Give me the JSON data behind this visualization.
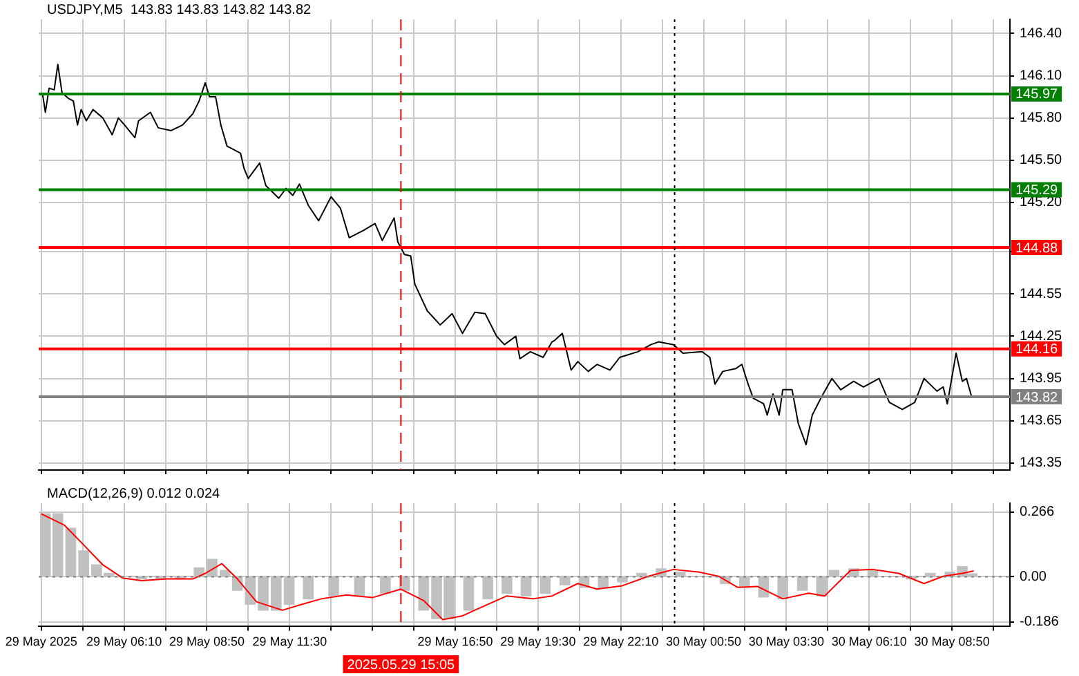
{
  "chart_data": [
    {
      "type": "line",
      "title": "USDJPY,M5  143.83 143.83 143.82 143.82",
      "grid": true,
      "tick_labels": "y",
      "legend": false,
      "xlim": [
        "2025-05-29T03:25",
        "2025-05-30T10:42"
      ],
      "ylim": [
        143.3,
        146.5
      ],
      "xticks": [
        {
          "value": "2025-05-29T03:30",
          "label": null
        },
        {
          "value": "2025-05-29T04:50",
          "label": null
        },
        {
          "value": "2025-05-29T06:10",
          "label": null
        },
        {
          "value": "2025-05-29T07:30",
          "label": null
        },
        {
          "value": "2025-05-29T08:50",
          "label": null
        },
        {
          "value": "2025-05-29T10:10",
          "label": null
        },
        {
          "value": "2025-05-29T11:30",
          "label": null
        },
        {
          "value": "2025-05-29T12:50",
          "label": null
        },
        {
          "value": "2025-05-29T14:10",
          "label": null
        },
        {
          "value": "2025-05-29T15:30",
          "label": null
        },
        {
          "value": "2025-05-29T16:50",
          "label": null
        },
        {
          "value": "2025-05-29T18:10",
          "label": null
        },
        {
          "value": "2025-05-29T19:30",
          "label": null
        },
        {
          "value": "2025-05-29T20:50",
          "label": null
        },
        {
          "value": "2025-05-29T22:10",
          "label": null
        },
        {
          "value": "2025-05-29T23:30",
          "label": null
        },
        {
          "value": "2025-05-30T00:50",
          "label": null
        },
        {
          "value": "2025-05-30T02:10",
          "label": null
        },
        {
          "value": "2025-05-30T03:30",
          "label": null
        },
        {
          "value": "2025-05-30T04:50",
          "label": null
        },
        {
          "value": "2025-05-30T06:10",
          "label": null
        },
        {
          "value": "2025-05-30T07:30",
          "label": null
        },
        {
          "value": "2025-05-30T08:50",
          "label": null
        },
        {
          "value": "2025-05-30T10:10",
          "label": null
        }
      ],
      "yticks": [
        {
          "value": 146.4,
          "label": "146.40"
        },
        {
          "value": 146.1,
          "label": "146.10"
        },
        {
          "value": 145.8,
          "label": "145.80"
        },
        {
          "value": 145.5,
          "label": "145.50"
        },
        {
          "value": 145.2,
          "label": "145.20"
        },
        {
          "value": 144.85,
          "label": null
        },
        {
          "value": 144.55,
          "label": "144.55"
        },
        {
          "value": 144.25,
          "label": "144.25"
        },
        {
          "value": 143.95,
          "label": "143.95"
        },
        {
          "value": 143.65,
          "label": "143.65"
        },
        {
          "value": 143.35,
          "label": "143.35"
        }
      ],
      "x": [
        "2025-05-29T03:32",
        "2025-05-29T03:38",
        "2025-05-29T03:45",
        "2025-05-29T03:55",
        "2025-05-29T04:02",
        "2025-05-29T04:10",
        "2025-05-29T04:22",
        "2025-05-29T04:32",
        "2025-05-29T04:40",
        "2025-05-29T04:47",
        "2025-05-29T04:57",
        "2025-05-29T05:10",
        "2025-05-29T05:29",
        "2025-05-29T05:47",
        "2025-05-29T05:59",
        "2025-05-29T06:11",
        "2025-05-29T06:31",
        "2025-05-29T06:38",
        "2025-05-29T07:01",
        "2025-05-29T07:16",
        "2025-05-29T07:41",
        "2025-05-29T08:03",
        "2025-05-29T08:23",
        "2025-05-29T08:35",
        "2025-05-29T08:47",
        "2025-05-29T08:55",
        "2025-05-29T09:07",
        "2025-05-29T09:17",
        "2025-05-29T09:29",
        "2025-05-29T09:55",
        "2025-05-29T10:02",
        "2025-05-29T10:10",
        "2025-05-29T10:32",
        "2025-05-29T10:44",
        "2025-05-29T11:09",
        "2025-05-29T11:23",
        "2025-05-29T11:36",
        "2025-05-29T11:49",
        "2025-05-29T12:06",
        "2025-05-29T12:26",
        "2025-05-29T12:50",
        "2025-05-29T13:08",
        "2025-05-29T13:25",
        "2025-05-29T13:52",
        "2025-05-29T14:15",
        "2025-05-29T14:29",
        "2025-05-29T14:52",
        "2025-05-29T14:59",
        "2025-05-29T15:12",
        "2025-05-29T15:24",
        "2025-05-29T15:32",
        "2025-05-29T15:56",
        "2025-05-29T16:21",
        "2025-05-29T16:44",
        "2025-05-29T17:04",
        "2025-05-29T17:28",
        "2025-05-29T17:48",
        "2025-05-29T18:10",
        "2025-05-29T18:25",
        "2025-05-29T18:47",
        "2025-05-29T18:55",
        "2025-05-29T19:15",
        "2025-05-29T19:40",
        "2025-05-29T19:57",
        "2025-05-29T20:02",
        "2025-05-29T20:17",
        "2025-05-29T20:34",
        "2025-05-29T20:47",
        "2025-05-29T21:07",
        "2025-05-29T21:24",
        "2025-05-29T21:49",
        "2025-05-29T22:08",
        "2025-05-29T22:43",
        "2025-05-29T23:08",
        "2025-05-29T23:23",
        "2025-05-29T23:52",
        "2025-05-30T00:10",
        "2025-05-30T00:47",
        "2025-05-30T01:02",
        "2025-05-30T01:12",
        "2025-05-30T01:27",
        "2025-05-30T01:52",
        "2025-05-30T02:04",
        "2025-05-30T02:16",
        "2025-05-30T02:26",
        "2025-05-30T02:46",
        "2025-05-30T02:53",
        "2025-05-30T03:04",
        "2025-05-30T03:16",
        "2025-05-30T03:23",
        "2025-05-30T03:41",
        "2025-05-30T03:53",
        "2025-05-30T04:08",
        "2025-05-30T04:20",
        "2025-05-30T04:38",
        "2025-05-30T04:58",
        "2025-05-30T05:15",
        "2025-05-30T05:40",
        "2025-05-30T05:59",
        "2025-05-30T06:29",
        "2025-05-30T06:49",
        "2025-05-30T07:14",
        "2025-05-30T07:38",
        "2025-05-30T07:56",
        "2025-05-30T08:21",
        "2025-05-30T08:33",
        "2025-05-30T08:41",
        "2025-05-30T08:58",
        "2025-05-30T09:10",
        "2025-05-30T09:18",
        "2025-05-30T09:28"
      ],
      "series": [
        {
          "color": "#000000",
          "values": [
            145.98,
            145.84,
            146.01,
            146.0,
            146.18,
            145.98,
            145.94,
            145.92,
            145.75,
            145.86,
            145.78,
            145.86,
            145.8,
            145.68,
            145.8,
            145.75,
            145.66,
            145.78,
            145.84,
            145.73,
            145.71,
            145.75,
            145.83,
            145.92,
            146.05,
            145.95,
            145.95,
            145.75,
            145.6,
            145.55,
            145.44,
            145.37,
            145.48,
            145.32,
            145.23,
            145.3,
            145.25,
            145.33,
            145.18,
            145.07,
            145.24,
            145.16,
            144.95,
            145.0,
            145.05,
            144.93,
            145.09,
            144.92,
            144.83,
            144.82,
            144.62,
            144.43,
            144.33,
            144.41,
            144.27,
            144.42,
            144.41,
            144.25,
            144.19,
            144.25,
            144.09,
            144.14,
            144.1,
            144.21,
            144.22,
            144.27,
            144.01,
            144.07,
            144.0,
            144.05,
            144.01,
            144.1,
            144.14,
            144.19,
            144.21,
            144.19,
            144.13,
            144.14,
            144.1,
            143.91,
            144.0,
            144.02,
            144.05,
            143.91,
            143.81,
            143.77,
            143.69,
            143.84,
            143.69,
            143.87,
            143.87,
            143.63,
            143.48,
            143.69,
            143.82,
            143.95,
            143.87,
            143.93,
            143.89,
            143.95,
            143.78,
            143.73,
            143.78,
            143.95,
            143.86,
            143.89,
            143.77,
            144.13,
            143.93,
            143.95,
            143.82
          ]
        }
      ],
      "ref_lines": [
        {
          "axis": "y",
          "value": 145.97,
          "label": "145.97",
          "color": "#008000",
          "line_style": "solid"
        },
        {
          "axis": "y",
          "value": 145.29,
          "label": "145.29",
          "color": "#008000",
          "line_style": "solid"
        },
        {
          "axis": "y",
          "value": 144.88,
          "label": "144.88",
          "color": "#ff0000",
          "line_style": "solid"
        },
        {
          "axis": "y",
          "value": 144.16,
          "label": "144.16",
          "color": "#ff0000",
          "line_style": "solid"
        },
        {
          "axis": "y",
          "value": 143.82,
          "label": "143.82",
          "color": "#808080",
          "line_style": "solid"
        },
        {
          "axis": "x",
          "value": "2025-05-29T15:05",
          "color": "#ff0000",
          "line_style": "dashed"
        },
        {
          "axis": "x",
          "value": "2025-05-29T23:54",
          "color": "#000000",
          "line_style": "dotted"
        }
      ]
    },
    {
      "type": "bar",
      "title": "MACD(12,26,9) 0.012 0.024",
      "grid": true,
      "legend": false,
      "xlim": [
        "2025-05-29T03:25",
        "2025-05-30T10:42"
      ],
      "ylim": [
        -0.205,
        0.303
      ],
      "xticks": [
        {
          "value": "2025-05-29T03:30",
          "label": "29 May 2025"
        },
        {
          "value": "2025-05-29T04:50",
          "label": null
        },
        {
          "value": "2025-05-29T06:10",
          "label": "29 May 06:10"
        },
        {
          "value": "2025-05-29T07:30",
          "label": null
        },
        {
          "value": "2025-05-29T08:50",
          "label": "29 May 08:50"
        },
        {
          "value": "2025-05-29T10:10",
          "label": null
        },
        {
          "value": "2025-05-29T11:30",
          "label": "29 May 11:30"
        },
        {
          "value": "2025-05-29T12:50",
          "label": null
        },
        {
          "value": "2025-05-29T14:10",
          "label": null
        },
        {
          "value": "2025-05-29T15:30",
          "label": null
        },
        {
          "value": "2025-05-29T16:50",
          "label": "29 May 16:50"
        },
        {
          "value": "2025-05-29T18:10",
          "label": null
        },
        {
          "value": "2025-05-29T19:30",
          "label": "29 May 19:30"
        },
        {
          "value": "2025-05-29T20:50",
          "label": null
        },
        {
          "value": "2025-05-29T22:10",
          "label": "29 May 22:10"
        },
        {
          "value": "2025-05-29T23:30",
          "label": null
        },
        {
          "value": "2025-05-30T00:50",
          "label": "30 May 00:50"
        },
        {
          "value": "2025-05-30T02:10",
          "label": null
        },
        {
          "value": "2025-05-30T03:30",
          "label": "30 May 03:30"
        },
        {
          "value": "2025-05-30T04:50",
          "label": null
        },
        {
          "value": "2025-05-30T06:10",
          "label": "30 May 06:10"
        },
        {
          "value": "2025-05-30T07:30",
          "label": null
        },
        {
          "value": "2025-05-30T08:50",
          "label": "30 May 08:50"
        },
        {
          "value": "2025-05-30T10:10",
          "label": null
        }
      ],
      "yticks": [
        0.266,
        {
          "value": 0,
          "label": "0.00"
        },
        -0.186
      ],
      "series": [
        {
          "color": "#c0c0c0",
          "x": [
            "2025-05-29T03:38",
            "2025-05-29T04:02",
            "2025-05-29T04:27",
            "2025-05-29T04:52",
            "2025-05-29T05:17",
            "2025-05-29T05:41",
            "2025-05-29T06:07",
            "2025-05-29T06:44",
            "2025-05-29T07:21",
            "2025-05-29T07:58",
            "2025-05-29T08:35",
            "2025-05-29T09:00",
            "2025-05-29T09:25",
            "2025-05-29T09:49",
            "2025-05-29T10:14",
            "2025-05-29T10:39",
            "2025-05-29T11:04",
            "2025-05-29T11:29",
            "2025-05-29T12:06",
            "2025-05-29T12:55",
            "2025-05-29T13:45",
            "2025-05-29T14:35",
            "2025-05-29T15:12",
            "2025-05-29T15:49",
            "2025-05-29T16:14",
            "2025-05-29T16:38",
            "2025-05-29T17:16",
            "2025-05-29T17:53",
            "2025-05-29T18:30",
            "2025-05-29T19:07",
            "2025-05-29T19:44",
            "2025-05-29T20:22",
            "2025-05-29T20:59",
            "2025-05-29T21:36",
            "2025-05-29T22:13",
            "2025-05-29T22:50",
            "2025-05-29T23:28",
            "2025-05-30T00:05",
            "2025-05-30T00:55",
            "2025-05-30T01:32",
            "2025-05-30T02:09",
            "2025-05-30T02:46",
            "2025-05-30T03:23",
            "2025-05-30T04:01",
            "2025-05-30T04:38",
            "2025-05-30T05:02",
            "2025-05-30T05:40",
            "2025-05-30T06:17",
            "2025-05-30T06:54",
            "2025-05-30T07:31",
            "2025-05-30T08:08",
            "2025-05-30T08:46",
            "2025-05-30T09:10",
            "2025-05-30T09:29"
          ],
          "values": [
            0.26,
            0.26,
            0.2,
            0.107,
            0.049,
            0.014,
            null,
            -0.009,
            -0.009,
            -0.009,
            0.037,
            0.072,
            0.026,
            -0.056,
            -0.114,
            -0.138,
            -0.138,
            -0.114,
            -0.091,
            -0.079,
            -0.079,
            -0.068,
            -0.056,
            -0.138,
            -0.173,
            -0.173,
            -0.138,
            -0.091,
            -0.068,
            -0.079,
            -0.068,
            -0.033,
            -0.044,
            -0.044,
            -0.021,
            0.014,
            0.033,
            0.019,
            null,
            -0.028,
            -0.044,
            -0.084,
            -0.091,
            -0.056,
            -0.079,
            0.026,
            0.033,
            0.026,
            null,
            -0.009,
            0.014,
            0.019,
            0.042,
            0.012
          ]
        },
        {
          "type": "line",
          "color": "#ff0000",
          "x": [
            "2025-05-29T03:30",
            "2025-05-29T04:15",
            "2025-05-29T04:52",
            "2025-05-29T05:29",
            "2025-05-29T06:07",
            "2025-05-29T06:44",
            "2025-05-29T07:33",
            "2025-05-29T08:23",
            "2025-05-29T08:47",
            "2025-05-29T09:19",
            "2025-05-29T09:49",
            "2025-05-29T10:26",
            "2025-05-29T11:16",
            "2025-05-29T11:53",
            "2025-05-29T12:31",
            "2025-05-29T13:20",
            "2025-05-29T14:10",
            "2025-05-29T15:05",
            "2025-05-29T15:49",
            "2025-05-29T16:26",
            "2025-05-29T17:04",
            "2025-05-29T17:53",
            "2025-05-29T18:30",
            "2025-05-29T19:20",
            "2025-05-29T19:57",
            "2025-05-29T20:47",
            "2025-05-29T21:24",
            "2025-05-29T22:13",
            "2025-05-29T23:03",
            "2025-05-29T23:52",
            "2025-05-30T00:42",
            "2025-05-30T01:19",
            "2025-05-30T01:56",
            "2025-05-30T02:34",
            "2025-05-30T03:23",
            "2025-05-30T04:13",
            "2025-05-30T04:44",
            "2025-05-30T05:34",
            "2025-05-30T06:17",
            "2025-05-30T07:07",
            "2025-05-30T07:56",
            "2025-05-30T08:33",
            "2025-05-30T09:10",
            "2025-05-30T09:32"
          ],
          "values": [
            0.259,
            0.212,
            0.131,
            0.049,
            -0.005,
            -0.016,
            -0.009,
            -0.009,
            0.014,
            0.054,
            -0.009,
            -0.103,
            -0.138,
            -0.114,
            -0.091,
            -0.075,
            -0.086,
            -0.051,
            -0.098,
            -0.177,
            -0.161,
            -0.114,
            -0.079,
            -0.091,
            -0.079,
            -0.028,
            -0.051,
            -0.037,
            0.002,
            0.03,
            0.019,
            0.002,
            -0.044,
            -0.04,
            -0.091,
            -0.068,
            -0.079,
            0.026,
            0.03,
            0.014,
            -0.028,
            0.002,
            0.014,
            0.024
          ]
        }
      ],
      "ref_lines": [
        {
          "axis": "y",
          "value": 0,
          "color": "#808080",
          "line_style": "dotted"
        },
        {
          "axis": "x",
          "value": "2025-05-29T15:05",
          "label": "2025.05.29 15:05",
          "color": "#ff0000",
          "line_style": "dashed"
        },
        {
          "axis": "x",
          "value": "2025-05-29T23:54",
          "color": "#000000",
          "line_style": "dotted"
        }
      ]
    }
  ]
}
